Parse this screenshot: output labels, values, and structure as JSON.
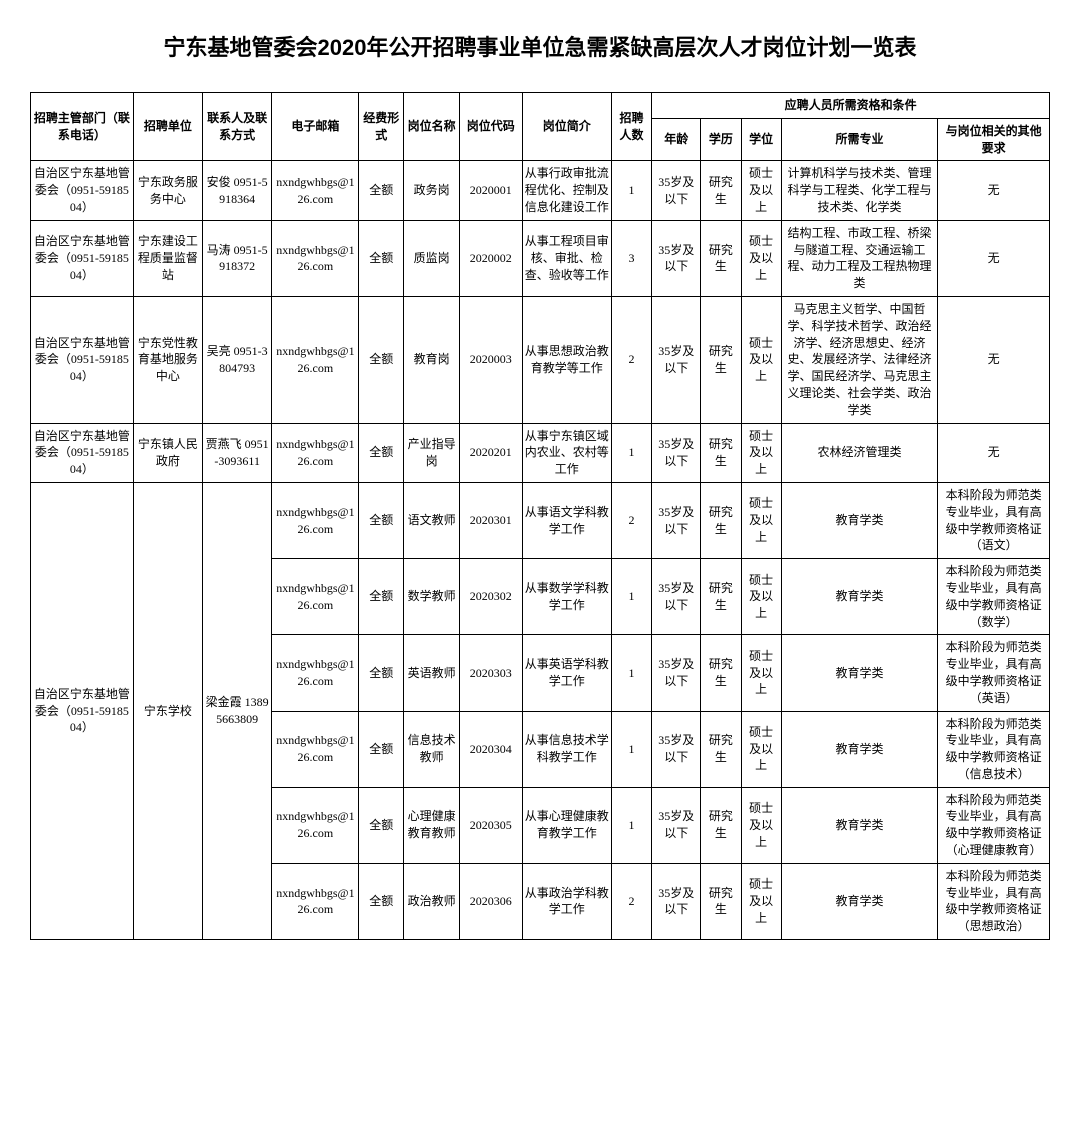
{
  "title": "宁东基地管委会2020年公开招聘事业单位急需紧缺高层次人才岗位计划一览表",
  "headers": {
    "dept": "招聘主管部门（联系电话）",
    "unit": "招聘单位",
    "contact": "联系人及联系方式",
    "email": "电子邮箱",
    "fund": "经费形式",
    "position": "岗位名称",
    "code": "岗位代码",
    "desc": "岗位简介",
    "num": "招聘人数",
    "qual_group": "应聘人员所需资格和条件",
    "age": "年龄",
    "edu": "学历",
    "degree": "学位",
    "major": "所需专业",
    "other": "与岗位相关的其他要求"
  },
  "dept_text": "自治区宁东基地管委会（0951-5918504）",
  "email_common": "nxndgwhbgs@126.com",
  "fund_common": "全额",
  "age_common": "35岁及以下",
  "edu_common": "研究生",
  "degree_common": "硕士及以上",
  "rows": [
    {
      "unit": "宁东政务服务中心",
      "contact": "安俊 0951-5918364",
      "position": "政务岗",
      "code": "2020001",
      "desc": "从事行政审批流程优化、控制及信息化建设工作",
      "num": "1",
      "major": "计算机科学与技术类、管理科学与工程类、化学工程与技术类、化学类",
      "other": "无"
    },
    {
      "unit": "宁东建设工程质量监督站",
      "contact": "马涛 0951-5918372",
      "position": "质监岗",
      "code": "2020002",
      "desc": "从事工程项目审核、审批、检查、验收等工作",
      "num": "3",
      "major": "结构工程、市政工程、桥梁与隧道工程、交通运输工程、动力工程及工程热物理类",
      "other": "无"
    },
    {
      "unit": "宁东党性教育基地服务中心",
      "contact": "吴亮 0951-3804793",
      "position": "教育岗",
      "code": "2020003",
      "desc": "从事思想政治教育教学等工作",
      "num": "2",
      "major": "马克思主义哲学、中国哲学、科学技术哲学、政治经济学、经济思想史、经济史、发展经济学、法律经济学、国民经济学、马克思主义理论类、社会学类、政治学类",
      "other": "无"
    },
    {
      "unit": "宁东镇人民政府",
      "contact": "贾燕飞 0951-3093611",
      "position": "产业指导岗",
      "code": "2020201",
      "desc": "从事宁东镇区域内农业、农村等工作",
      "num": "1",
      "major": "农林经济管理类",
      "other": "无"
    }
  ],
  "school": {
    "unit": "宁东学校",
    "contact": "梁金霞 13895663809",
    "rows": [
      {
        "position": "语文教师",
        "code": "2020301",
        "desc": "从事语文学科教学工作",
        "num": "2",
        "major": "教育学类",
        "other": "本科阶段为师范类专业毕业，具有高级中学教师资格证（语文）"
      },
      {
        "position": "数学教师",
        "code": "2020302",
        "desc": "从事数学学科教学工作",
        "num": "1",
        "major": "教育学类",
        "other": "本科阶段为师范类专业毕业，具有高级中学教师资格证（数学）"
      },
      {
        "position": "英语教师",
        "code": "2020303",
        "desc": "从事英语学科教学工作",
        "num": "1",
        "major": "教育学类",
        "other": "本科阶段为师范类专业毕业，具有高级中学教师资格证（英语）"
      },
      {
        "position": "信息技术教师",
        "code": "2020304",
        "desc": "从事信息技术学科教学工作",
        "num": "1",
        "major": "教育学类",
        "other": "本科阶段为师范类专业毕业，具有高级中学教师资格证（信息技术）"
      },
      {
        "position": "心理健康教育教师",
        "code": "2020305",
        "desc": "从事心理健康教育教学工作",
        "num": "1",
        "major": "教育学类",
        "other": "本科阶段为师范类专业毕业，具有高级中学教师资格证（心理健康教育）"
      },
      {
        "position": "政治教师",
        "code": "2020306",
        "desc": "从事政治学科教学工作",
        "num": "2",
        "major": "教育学类",
        "other": "本科阶段为师范类专业毕业，具有高级中学教师资格证（思想政治）"
      }
    ]
  }
}
